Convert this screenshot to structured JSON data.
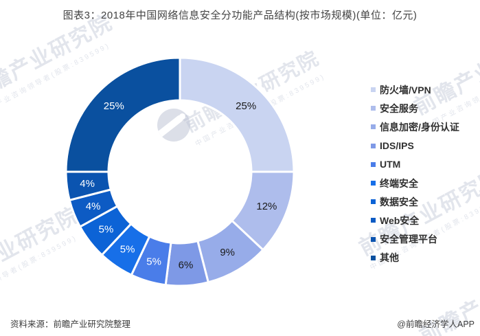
{
  "title": "图表3：2018年中国网络信息安全分功能产品结构(按市场规模)(单位：亿元)",
  "footer": {
    "source": "资料来源：前瞻产业研究院整理",
    "credit": "@前瞻经济学人APP"
  },
  "watermark": {
    "brand": "前瞻产业研究院",
    "tagline": "中国产业咨询领导者(股票:839599)"
  },
  "chart_data": {
    "type": "pie",
    "donut": true,
    "title": "2018年中国网络信息安全分功能产品结构(按市场规模)",
    "unit": "亿元",
    "start_angle_deg": 0,
    "direction": "clockwise",
    "legend_position": "right",
    "categories": [
      "防火墙/VPN",
      "安全服务",
      "信息加密/身份认证",
      "IDS/IPS",
      "UTM",
      "终端安全",
      "数据安全",
      "Web安全",
      "安全管理平台",
      "其他"
    ],
    "values_pct": [
      25,
      12,
      9,
      6,
      5,
      5,
      5,
      4,
      4,
      25
    ],
    "labels": [
      "25%",
      "12%",
      "9%",
      "6%",
      "5%",
      "5%",
      "5%",
      "4%",
      "4%",
      "25%"
    ],
    "colors": [
      "#c9d4f1",
      "#aebdec",
      "#97ace9",
      "#7e99e6",
      "#4a7de9",
      "#176fe8",
      "#0c63d6",
      "#0d5bc4",
      "#0b54b0",
      "#0a509f"
    ],
    "label_colors": [
      "#1a1a1a",
      "#1a1a1a",
      "#1a1a1a",
      "#1a1a1a",
      "#ffffff",
      "#ffffff",
      "#ffffff",
      "#ffffff",
      "#ffffff",
      "#ffffff"
    ]
  }
}
